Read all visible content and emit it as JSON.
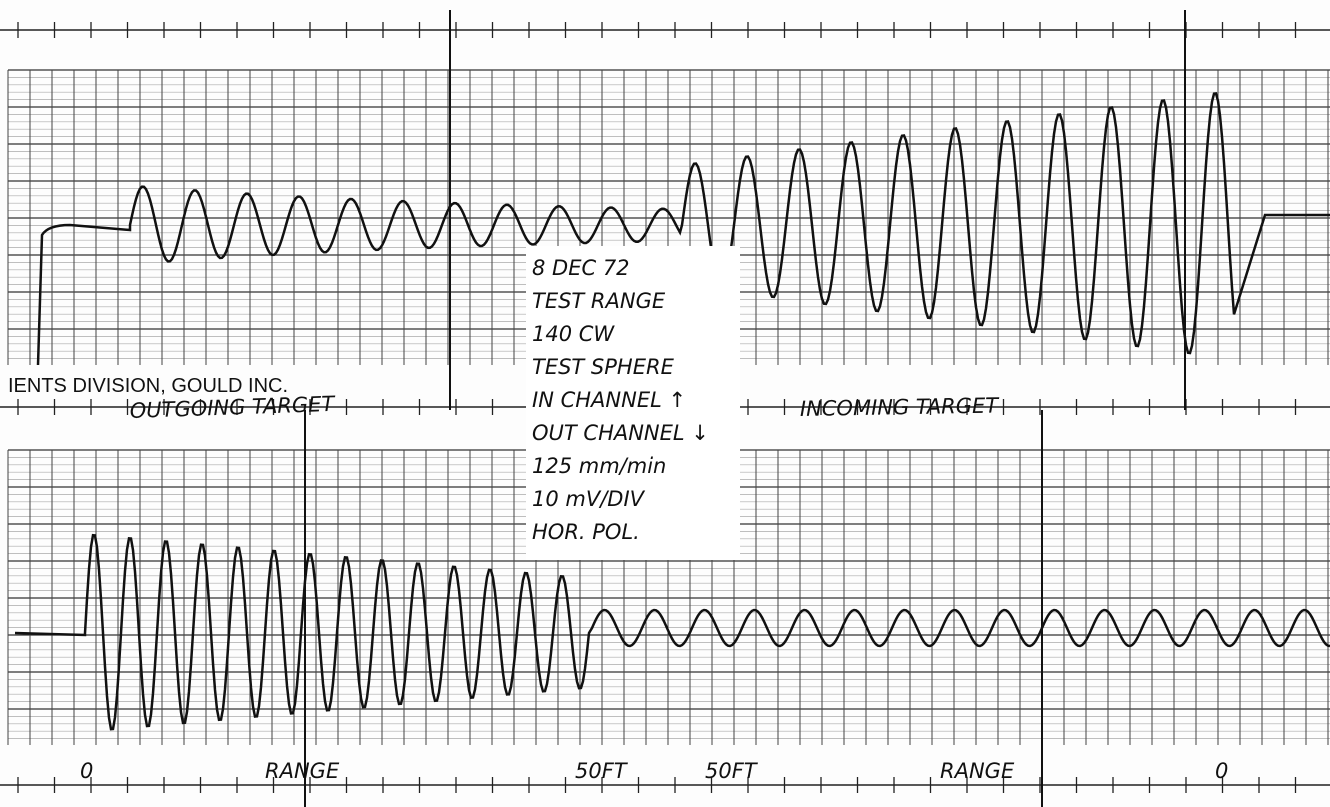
{
  "imprint": "IENTS DIVISION, GOULD INC.",
  "trace_labels": [
    "OUTGOING TARGET",
    "INCOMING TARGET"
  ],
  "note": {
    "lines": [
      "8 DEC 72",
      "TEST RANGE",
      "140 CW",
      "TEST SPHERE",
      "IN CHANNEL ↑",
      "OUT CHANNEL ↓",
      "125 mm/min",
      "10 mV/DIV",
      "HOR. POL."
    ]
  },
  "range_labels": [
    "0",
    "RANGE",
    "50FT",
    "50FT",
    "RANGE",
    "0"
  ]
}
